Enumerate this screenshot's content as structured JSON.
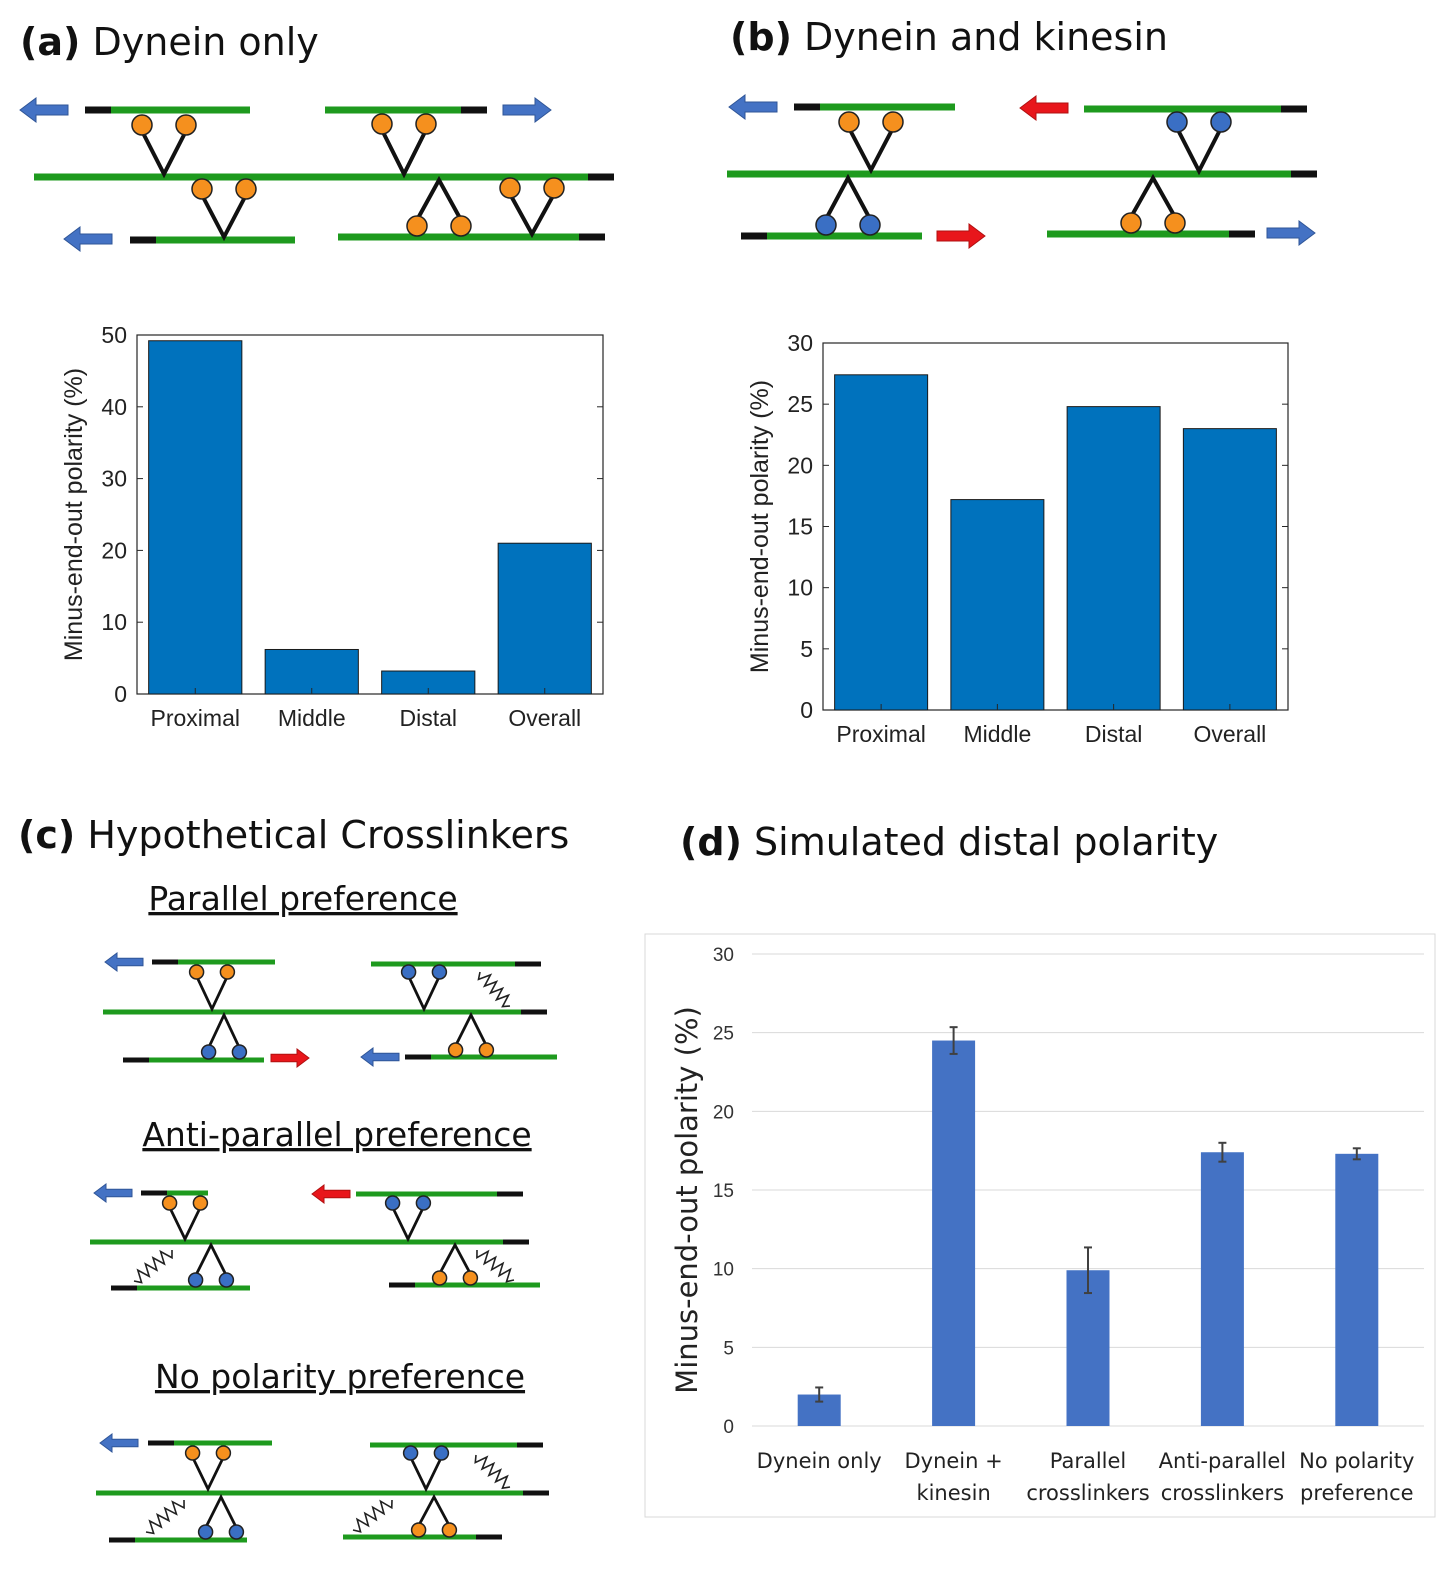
{
  "panels": {
    "a": {
      "label": "(a)",
      "title": "Dynein only"
    },
    "b": {
      "label": "(b)",
      "title": "Dynein and kinesin"
    },
    "c": {
      "label": "(c)",
      "title": "Hypothetical Crosslinkers",
      "subtitles": [
        "Parallel preference",
        "Anti-parallel preference",
        "No polarity preference"
      ]
    },
    "d": {
      "label": "(d)",
      "title": "Simulated distal polarity"
    }
  },
  "colors": {
    "bar_matlab": "#0072BD",
    "bar_excel": "#4472C4",
    "microtubule": "#1E9A1E",
    "minus_end": "#111111",
    "dynein_head": "#F5901E",
    "kinesin_head": "#3A6FC4",
    "arrow_dynein": "#4472C4",
    "arrow_kinesin": "#E8161B"
  },
  "chart_data": [
    {
      "panel": "a",
      "type": "bar",
      "categories": [
        "Proximal",
        "Middle",
        "Distal",
        "Overall"
      ],
      "values": [
        49.2,
        6.2,
        3.2,
        21.0
      ],
      "ylabel": "Minus-end-out polarity (%)",
      "ylim": [
        0,
        50
      ],
      "yticks": [
        0,
        10,
        20,
        30,
        40,
        50
      ],
      "grid": false
    },
    {
      "panel": "b",
      "type": "bar",
      "categories": [
        "Proximal",
        "Middle",
        "Distal",
        "Overall"
      ],
      "values": [
        27.4,
        17.2,
        24.8,
        23.0
      ],
      "ylabel": "Minus-end-out polarity (%)",
      "ylim": [
        0,
        30
      ],
      "yticks": [
        0,
        5,
        10,
        15,
        20,
        25,
        30
      ],
      "grid": false
    },
    {
      "panel": "d",
      "type": "bar",
      "categories": [
        [
          "Dynein only"
        ],
        [
          "Dynein +",
          "kinesin"
        ],
        [
          "Parallel",
          "crosslinkers"
        ],
        [
          "Anti-parallel",
          "crosslinkers"
        ],
        [
          "No polarity",
          "preference"
        ]
      ],
      "values": [
        2.0,
        24.5,
        9.9,
        17.4,
        17.3
      ],
      "error": [
        0.45,
        0.85,
        1.45,
        0.6,
        0.35
      ],
      "ylabel": "Minus-end-out polarity (%)",
      "ylim": [
        0,
        30
      ],
      "yticks": [
        0,
        5,
        10,
        15,
        20,
        25,
        30
      ],
      "grid": true
    }
  ]
}
